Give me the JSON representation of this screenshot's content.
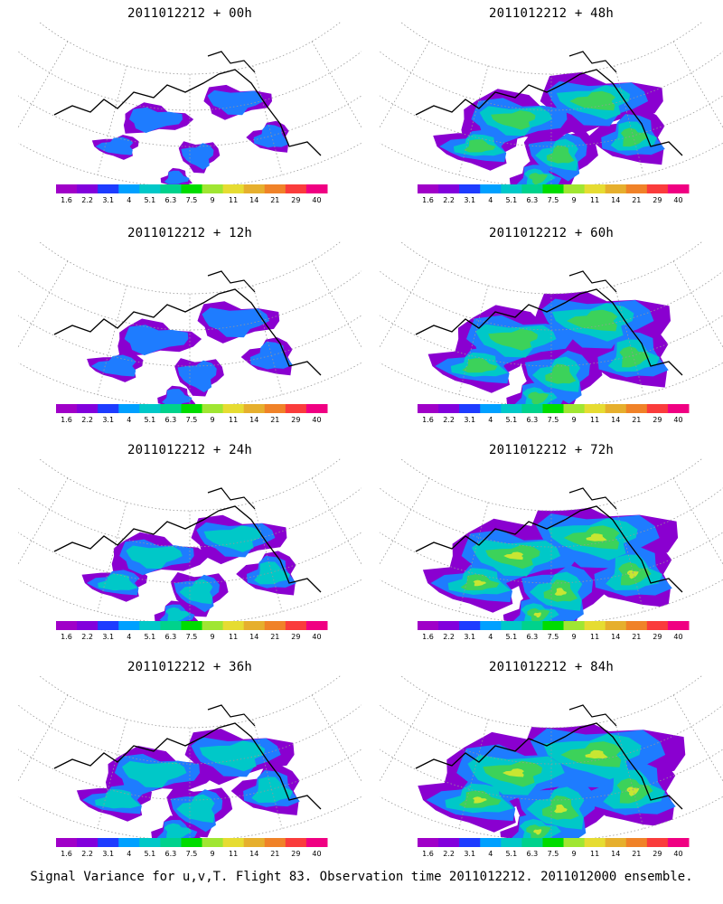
{
  "panels": [
    {
      "title": "2011012212 + 00h"
    },
    {
      "title": "2011012212 + 48h"
    },
    {
      "title": "2011012212 + 12h"
    },
    {
      "title": "2011012212 + 60h"
    },
    {
      "title": "2011012212 + 24h"
    },
    {
      "title": "2011012212 + 72h"
    },
    {
      "title": "2011012212 + 36h"
    },
    {
      "title": "2011012212 + 84h"
    }
  ],
  "colorbar": {
    "labels": [
      "1.6",
      "2.2",
      "3.1",
      "4",
      "5.1",
      "6.3",
      "7.5",
      "9",
      "11",
      "14",
      "21",
      "29",
      "40"
    ],
    "colors": [
      "#a000c8",
      "#8200dc",
      "#1e3cff",
      "#00a0ff",
      "#00c8c8",
      "#00d28c",
      "#00dc00",
      "#a0e632",
      "#e6dc32",
      "#e6af2d",
      "#f08228",
      "#fa3c3c",
      "#f00082"
    ]
  },
  "footer": "Signal Variance for u,v,T. Flight 83. Observation time 2011012212. 2011012000 ensemble."
}
